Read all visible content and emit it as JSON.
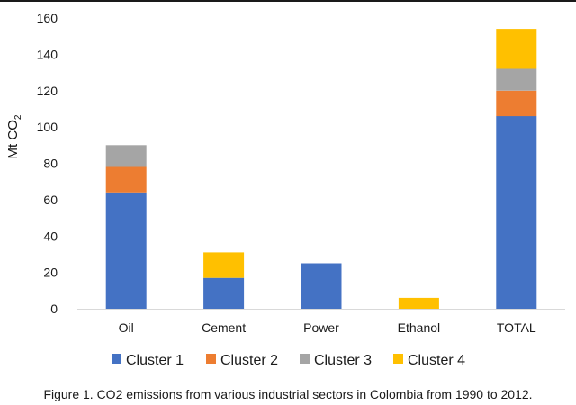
{
  "chart_data": {
    "type": "bar",
    "stacked": true,
    "title": "",
    "xlabel": "",
    "ylabel": "Mt CO",
    "ylabel_subscript": "2",
    "ylim": [
      0,
      160
    ],
    "yticks": [
      0,
      20,
      40,
      60,
      80,
      100,
      120,
      140,
      160
    ],
    "grid": false,
    "legend_position": "bottom",
    "categories": [
      "Oil",
      "Cement",
      "Power",
      "Ethanol",
      "TOTAL"
    ],
    "series": [
      {
        "name": "Cluster 1",
        "color": "#4472C4",
        "values": [
          64,
          17,
          25,
          0,
          106
        ]
      },
      {
        "name": "Cluster 2",
        "color": "#ED7D31",
        "values": [
          14,
          0,
          0,
          0,
          14
        ]
      },
      {
        "name": "Cluster 3",
        "color": "#A5A5A5",
        "values": [
          12,
          0,
          0,
          0,
          12
        ]
      },
      {
        "name": "Cluster 4",
        "color": "#FFC000",
        "values": [
          0,
          14,
          0,
          6,
          22
        ]
      }
    ]
  },
  "caption": "Figure 1.  CO2 emissions from various industrial sectors in Colombia from 1990 to 2012."
}
